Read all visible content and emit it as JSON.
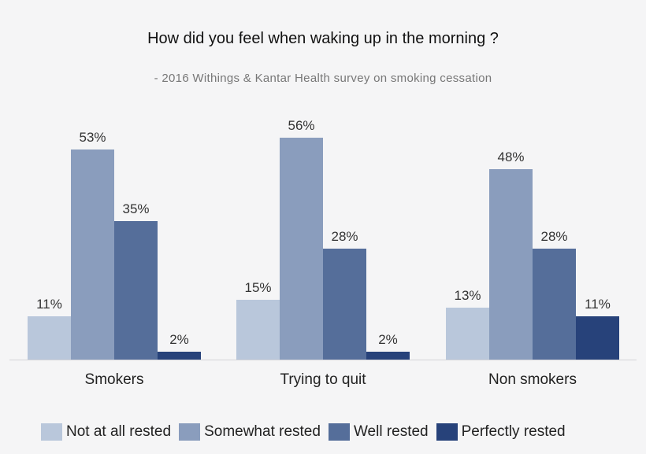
{
  "header": {
    "title": "How did you feel when waking up in the morning ?",
    "subtitle": "- 2016 Withings & Kantar Health survey on smoking cessation"
  },
  "legend": [
    {
      "label": "Not at all rested",
      "color": "#b9c7db"
    },
    {
      "label": "Somewhat rested",
      "color": "#8a9dbd"
    },
    {
      "label": "Well rested",
      "color": "#556e9a"
    },
    {
      "label": "Perfectly rested",
      "color": "#27427a"
    }
  ],
  "groups": [
    {
      "label": "Smokers",
      "values": [
        "11%",
        "53%",
        "35%",
        "2%"
      ]
    },
    {
      "label": "Trying to quit",
      "values": [
        "15%",
        "56%",
        "28%",
        "2%"
      ]
    },
    {
      "label": "Non smokers",
      "values": [
        "13%",
        "48%",
        "28%",
        "11%"
      ]
    }
  ],
  "chart_data": {
    "type": "bar",
    "title": "How did you feel when waking up in the morning ?",
    "subtitle": "- 2016 Withings & Kantar Health survey on smoking cessation",
    "categories": [
      "Smokers",
      "Trying to quit",
      "Non smokers"
    ],
    "series": [
      {
        "name": "Not at all rested",
        "color": "#b9c7db",
        "values": [
          11,
          15,
          13
        ]
      },
      {
        "name": "Somewhat rested",
        "color": "#8a9dbd",
        "values": [
          53,
          56,
          48
        ]
      },
      {
        "name": "Well rested",
        "color": "#556e9a",
        "values": [
          35,
          28,
          28
        ]
      },
      {
        "name": "Perfectly rested",
        "color": "#27427a",
        "values": [
          2,
          2,
          11
        ]
      }
    ],
    "xlabel": "",
    "ylabel": "",
    "unit": "%",
    "ylim": [
      0,
      60
    ],
    "grid": false,
    "legend_position": "bottom",
    "data_labels": true
  }
}
